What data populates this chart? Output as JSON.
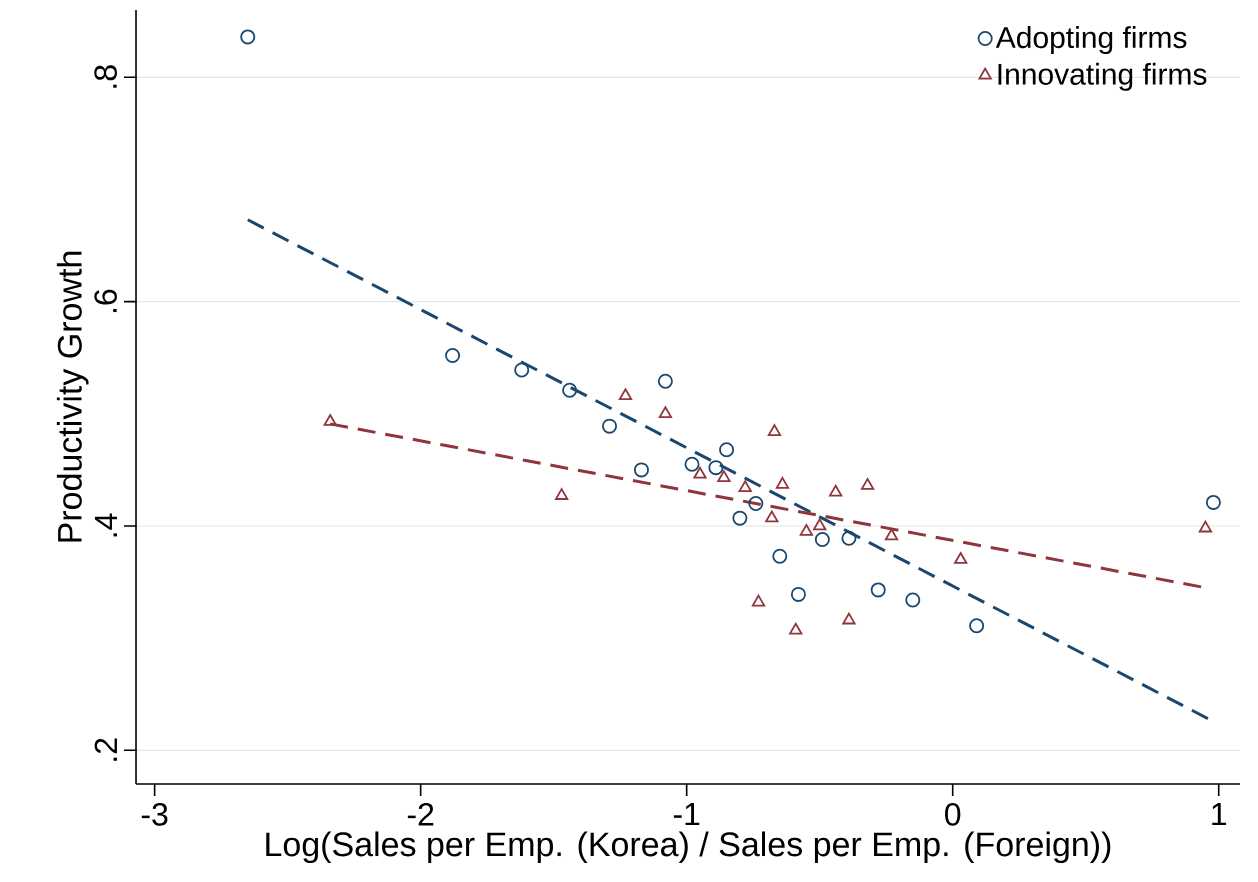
{
  "chart_data": {
    "type": "scatter",
    "xlabel": "Log(Sales per Emp. (Korea) / Sales per Emp. (Foreign))",
    "ylabel": "Productivity Growth",
    "xlim": [
      -3.07,
      1.08
    ],
    "ylim": [
      0.17,
      0.86
    ],
    "xticks": [
      -3,
      -2,
      -1,
      0,
      1
    ],
    "yticks": [
      {
        "value": 0.2,
        "label": ".2"
      },
      {
        "value": 0.4,
        "label": ".4"
      },
      {
        "value": 0.6,
        "label": ".6"
      },
      {
        "value": 0.8,
        "label": ".8"
      }
    ],
    "grid": "y",
    "legend": "top right",
    "series": [
      {
        "name": "Adopting firms",
        "color": "#1a476f",
        "marker": "circle",
        "x": [
          -2.65,
          -1.88,
          -1.62,
          -1.44,
          -1.29,
          -1.08,
          -1.17,
          -0.98,
          -0.89,
          -0.85,
          -0.8,
          -0.74,
          -0.65,
          -0.58,
          -0.49,
          -0.39,
          -0.28,
          -0.15,
          0.09,
          0.98
        ],
        "values": [
          0.836,
          0.552,
          0.539,
          0.521,
          0.489,
          0.529,
          0.45,
          0.455,
          0.452,
          0.468,
          0.407,
          0.42,
          0.373,
          0.339,
          0.388,
          0.389,
          0.343,
          0.334,
          0.311,
          0.421
        ]
      },
      {
        "name": "Innovating firms",
        "color": "#90353b",
        "marker": "triangle",
        "x": [
          -2.34,
          -1.47,
          -1.23,
          -1.08,
          -0.95,
          -0.86,
          -0.78,
          -0.67,
          -0.64,
          -0.44,
          -0.32,
          -0.68,
          -0.55,
          -0.5,
          -0.23,
          0.03,
          -0.73,
          -0.59,
          -0.39,
          0.95
        ],
        "values": [
          0.493,
          0.427,
          0.516,
          0.5,
          0.446,
          0.443,
          0.434,
          0.484,
          0.437,
          0.43,
          0.436,
          0.407,
          0.395,
          0.4,
          0.391,
          0.37,
          0.332,
          0.307,
          0.316,
          0.398
        ]
      },
      {
        "type": "line",
        "color": "#1a476f",
        "marker": "none",
        "line_style": "dashed",
        "x": [
          -2.65,
          0.97
        ],
        "values": [
          0.673,
          0.227
        ]
      },
      {
        "type": "line",
        "color": "#90353b",
        "marker": "none",
        "line_style": "dashed",
        "x": [
          -2.34,
          0.95
        ],
        "values": [
          0.491,
          0.345
        ]
      }
    ]
  }
}
